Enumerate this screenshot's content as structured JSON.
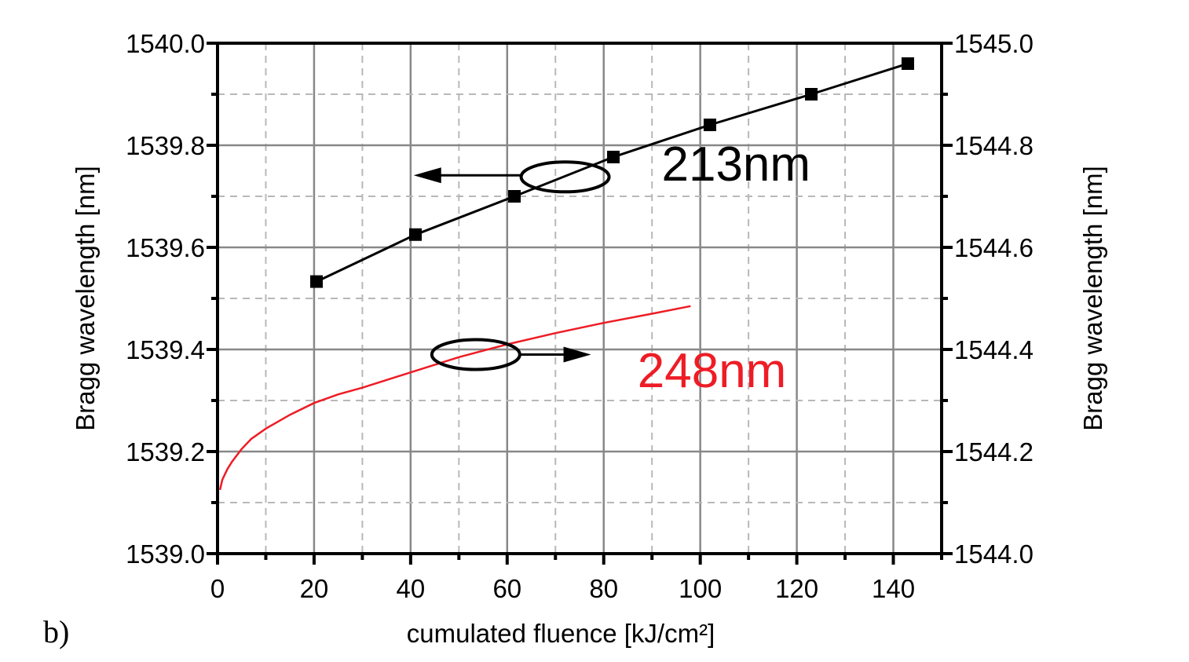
{
  "panel_label": "b)",
  "chart_data": {
    "type": "line",
    "title": "",
    "xlabel": "cumulated fluence [kJ/cm²]",
    "ylabel_left": "Bragg wavelength [nm]",
    "ylabel_right": "Bragg wavelength [nm]",
    "xlim": [
      0,
      150
    ],
    "ylim_left": [
      1539.0,
      1540.0
    ],
    "ylim_right": [
      1544.0,
      1545.0
    ],
    "grid": true,
    "x_ticks": [
      "0",
      "20",
      "40",
      "60",
      "80",
      "100",
      "120",
      "140"
    ],
    "y_ticks_left": [
      "1539.0",
      "1539.2",
      "1539.4",
      "1539.6",
      "1539.8",
      "1540.0"
    ],
    "y_ticks_right": [
      "1544.0",
      "1544.2",
      "1544.4",
      "1544.6",
      "1544.8",
      "1545.0"
    ],
    "series": [
      {
        "name": "213nm",
        "axis": "left",
        "color": "#000000",
        "marker": "square",
        "x": [
          20.5,
          41,
          61.5,
          82,
          102,
          123,
          143
        ],
        "y": [
          1539.533,
          1539.625,
          1539.7,
          1539.777,
          1539.84,
          1539.9,
          1539.96
        ]
      },
      {
        "name": "248nm",
        "axis": "right",
        "color": "#ee1c25",
        "marker": "none",
        "x": [
          0.5,
          1,
          2,
          3,
          5,
          7,
          10,
          15,
          20,
          25,
          30,
          40,
          50,
          60,
          70,
          80,
          90,
          98
        ],
        "y": [
          1544.125,
          1544.145,
          1544.165,
          1544.18,
          1544.205,
          1544.225,
          1544.245,
          1544.272,
          1544.295,
          1544.312,
          1544.325,
          1544.355,
          1544.385,
          1544.41,
          1544.432,
          1544.452,
          1544.47,
          1544.485
        ]
      }
    ],
    "annotations": [
      {
        "text": "213nm",
        "color": "#000000",
        "x": 92,
        "y_left": 1539.765,
        "points_to": "left"
      },
      {
        "text": "248nm",
        "color": "#ee1c25",
        "x": 87,
        "y_left": 1539.36,
        "points_to": "right"
      }
    ]
  }
}
